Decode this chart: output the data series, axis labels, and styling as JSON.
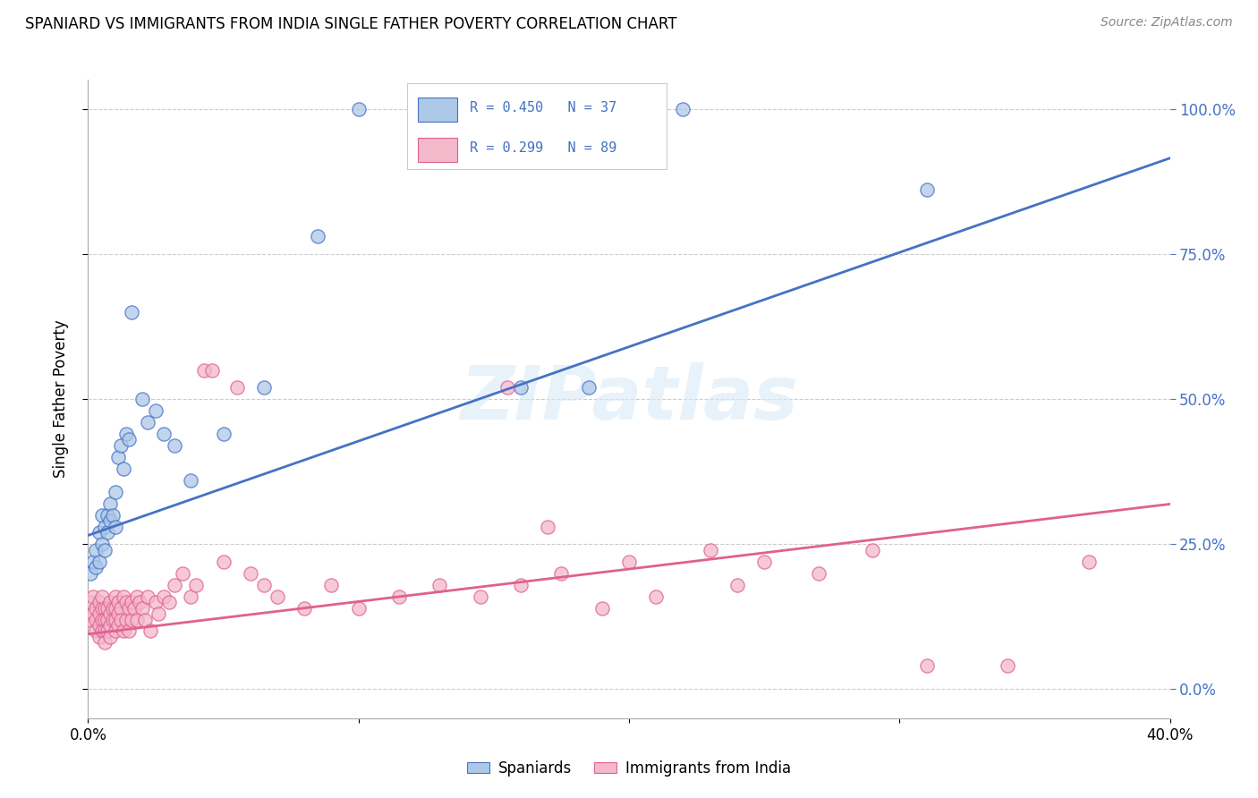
{
  "title": "SPANIARD VS IMMIGRANTS FROM INDIA SINGLE FATHER POVERTY CORRELATION CHART",
  "source": "Source: ZipAtlas.com",
  "ylabel": "Single Father Poverty",
  "xlim": [
    0,
    0.4
  ],
  "ylim": [
    -0.05,
    1.05
  ],
  "blue_R": 0.45,
  "blue_N": 37,
  "pink_R": 0.299,
  "pink_N": 89,
  "blue_fill": "#aec8e8",
  "pink_fill": "#f4b8cb",
  "blue_edge": "#4472c4",
  "pink_edge": "#e06090",
  "blue_line": "#4472c4",
  "pink_line": "#e06090",
  "right_tick_color": "#4472c4",
  "legend_label_blue": "Spaniards",
  "legend_label_pink": "Immigrants from India",
  "blue_line_intercept": 0.265,
  "blue_line_slope": 1.625,
  "pink_line_intercept": 0.095,
  "pink_line_slope": 0.56,
  "blue_points_x": [
    0.001,
    0.002,
    0.003,
    0.003,
    0.004,
    0.004,
    0.005,
    0.005,
    0.006,
    0.006,
    0.007,
    0.007,
    0.008,
    0.008,
    0.009,
    0.01,
    0.01,
    0.011,
    0.012,
    0.013,
    0.014,
    0.015,
    0.016,
    0.02,
    0.022,
    0.025,
    0.028,
    0.032,
    0.038,
    0.05,
    0.065,
    0.085,
    0.1,
    0.16,
    0.185,
    0.22,
    0.31
  ],
  "blue_points_y": [
    0.2,
    0.22,
    0.21,
    0.24,
    0.22,
    0.27,
    0.25,
    0.3,
    0.24,
    0.28,
    0.27,
    0.3,
    0.29,
    0.32,
    0.3,
    0.28,
    0.34,
    0.4,
    0.42,
    0.38,
    0.44,
    0.43,
    0.65,
    0.5,
    0.46,
    0.48,
    0.44,
    0.42,
    0.36,
    0.44,
    0.52,
    0.78,
    1.0,
    0.52,
    0.52,
    1.0,
    0.86
  ],
  "pink_points_x": [
    0.001,
    0.001,
    0.002,
    0.002,
    0.003,
    0.003,
    0.003,
    0.004,
    0.004,
    0.004,
    0.004,
    0.005,
    0.005,
    0.005,
    0.005,
    0.006,
    0.006,
    0.006,
    0.006,
    0.007,
    0.007,
    0.007,
    0.008,
    0.008,
    0.008,
    0.008,
    0.009,
    0.009,
    0.01,
    0.01,
    0.01,
    0.01,
    0.011,
    0.011,
    0.011,
    0.012,
    0.012,
    0.013,
    0.013,
    0.014,
    0.014,
    0.015,
    0.015,
    0.016,
    0.016,
    0.017,
    0.018,
    0.018,
    0.019,
    0.02,
    0.021,
    0.022,
    0.023,
    0.025,
    0.026,
    0.028,
    0.03,
    0.032,
    0.035,
    0.038,
    0.04,
    0.043,
    0.046,
    0.05,
    0.055,
    0.06,
    0.065,
    0.07,
    0.08,
    0.09,
    0.1,
    0.115,
    0.13,
    0.145,
    0.16,
    0.175,
    0.19,
    0.21,
    0.24,
    0.27,
    0.155,
    0.17,
    0.2,
    0.23,
    0.25,
    0.29,
    0.31,
    0.34,
    0.37
  ],
  "pink_points_y": [
    0.15,
    0.12,
    0.16,
    0.13,
    0.14,
    0.12,
    0.1,
    0.15,
    0.13,
    0.11,
    0.09,
    0.14,
    0.12,
    0.16,
    0.1,
    0.14,
    0.12,
    0.1,
    0.08,
    0.14,
    0.12,
    0.1,
    0.15,
    0.13,
    0.11,
    0.09,
    0.14,
    0.12,
    0.16,
    0.14,
    0.12,
    0.1,
    0.15,
    0.13,
    0.11,
    0.14,
    0.12,
    0.16,
    0.1,
    0.15,
    0.12,
    0.14,
    0.1,
    0.15,
    0.12,
    0.14,
    0.16,
    0.12,
    0.15,
    0.14,
    0.12,
    0.16,
    0.1,
    0.15,
    0.13,
    0.16,
    0.15,
    0.18,
    0.2,
    0.16,
    0.18,
    0.55,
    0.55,
    0.22,
    0.52,
    0.2,
    0.18,
    0.16,
    0.14,
    0.18,
    0.14,
    0.16,
    0.18,
    0.16,
    0.18,
    0.2,
    0.14,
    0.16,
    0.18,
    0.2,
    0.52,
    0.28,
    0.22,
    0.24,
    0.22,
    0.24,
    0.04,
    0.04,
    0.22
  ]
}
